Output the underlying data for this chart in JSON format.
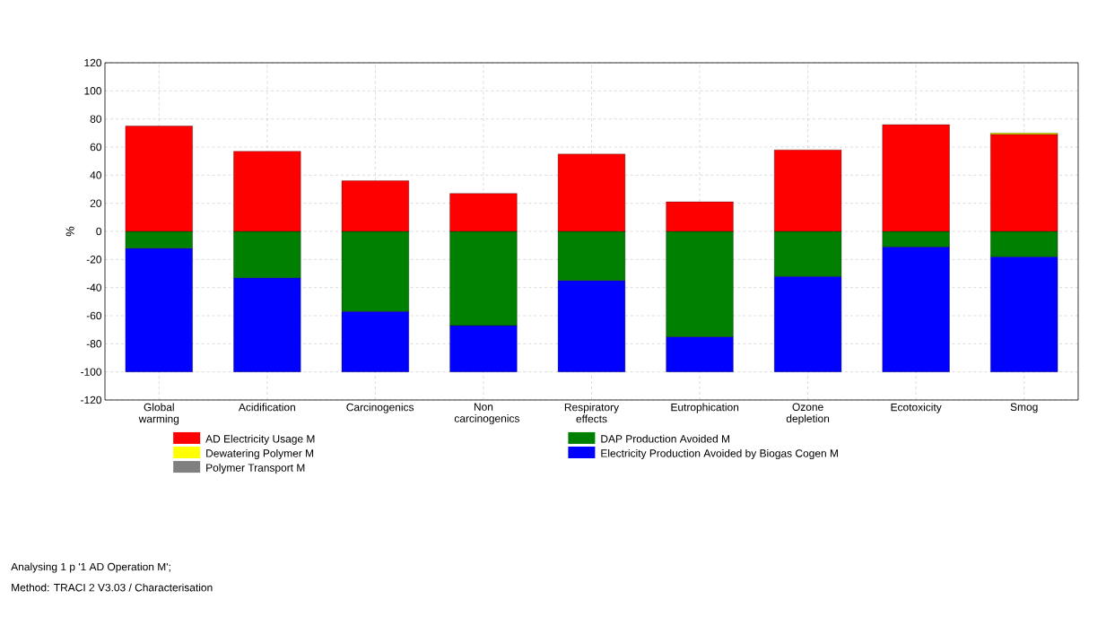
{
  "chart_data": {
    "type": "bar",
    "stacked": true,
    "ylabel": "%",
    "categories": [
      "Global warming",
      "Acidification",
      "Carcinogenics",
      "Non carcinogenics",
      "Respiratory effects",
      "Eutrophication",
      "Ozone depletion",
      "Ecotoxicity",
      "Smog"
    ],
    "series": [
      {
        "name": "AD Electricity Usage M",
        "color": "#ff0000",
        "values": [
          75,
          57,
          36,
          27,
          55,
          21,
          58,
          76,
          69
        ]
      },
      {
        "name": "Dewatering Polymer M",
        "color": "#ffff00",
        "values": [
          0,
          0,
          0,
          0,
          0,
          0,
          0,
          0,
          1
        ]
      },
      {
        "name": "Polymer Transport M",
        "color": "#808080",
        "values": [
          0,
          0,
          0,
          0,
          0,
          0,
          0,
          0,
          0
        ]
      },
      {
        "name": "DAP Production Avoided M",
        "color": "#008000",
        "values": [
          -12,
          -33,
          -57,
          -67,
          -35,
          -75,
          -32,
          -11,
          -18
        ]
      },
      {
        "name": "Electricity Production Avoided by Biogas Cogen M",
        "color": "#0000ff",
        "values": [
          -88,
          -67,
          -43,
          -33,
          -65,
          -25,
          -68,
          -89,
          -82
        ]
      }
    ],
    "ylim": [
      -120,
      120
    ],
    "yticks": [
      -120,
      -100,
      -80,
      -60,
      -40,
      -20,
      0,
      20,
      40,
      60,
      80,
      100,
      120
    ],
    "grid": true,
    "legend": "bottom",
    "annotations": [
      "Analysing 1 p '1 AD Operation M';",
      "Method: TRACI 2 V3.03 / Characterisation"
    ]
  }
}
